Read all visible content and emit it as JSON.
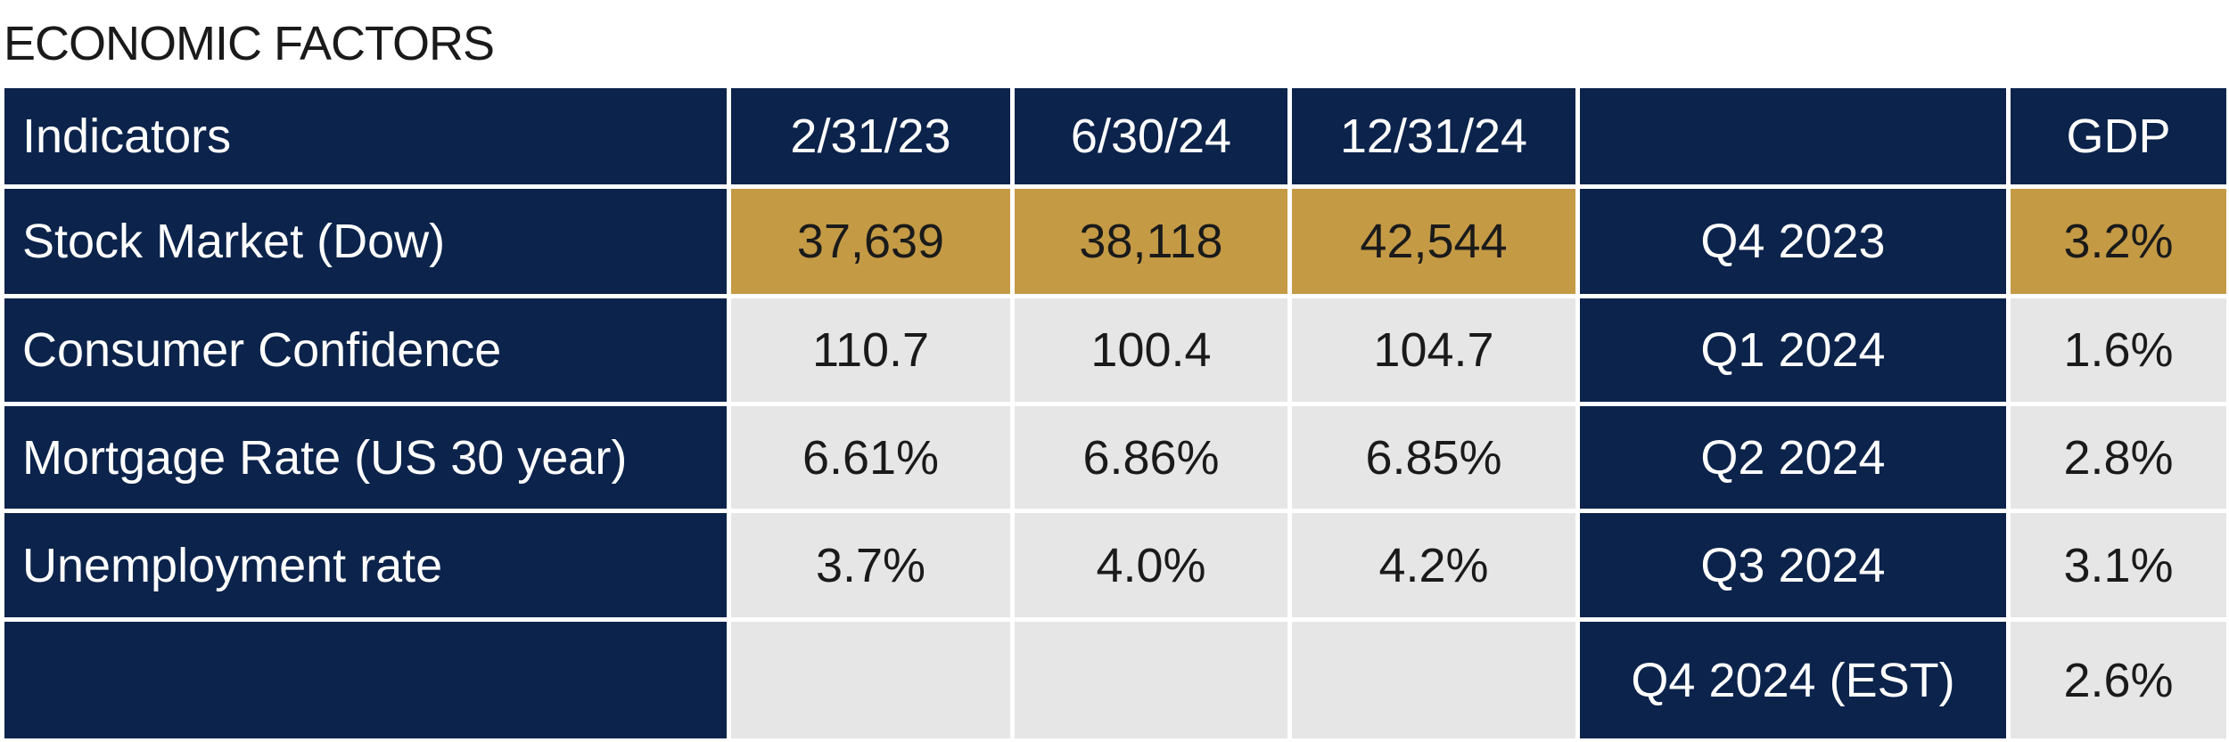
{
  "title": "ECONOMIC FACTORS",
  "table": {
    "header": [
      "Indicators",
      "2/31/23",
      "6/30/24",
      "12/31/24",
      null,
      "GDP"
    ],
    "rows": [
      [
        "Stock Market (Dow)",
        "37,639",
        "38,118",
        "42,544",
        "Q4 2023",
        "3.2%"
      ],
      [
        "Consumer Confidence",
        "110.7",
        "100.4",
        "104.7",
        "Q1 2024",
        "1.6%"
      ],
      [
        "Mortgage Rate (US 30 year)",
        "6.61%",
        "6.86%",
        "6.85%",
        "Q2 2024",
        "2.8%"
      ],
      [
        "Unemployment rate",
        "3.7%",
        "4.0%",
        "4.2%",
        "Q3 2024",
        "3.1%"
      ],
      [
        null,
        null,
        null,
        null,
        "Q4 2024 (EST)",
        "2.6%"
      ]
    ]
  }
}
